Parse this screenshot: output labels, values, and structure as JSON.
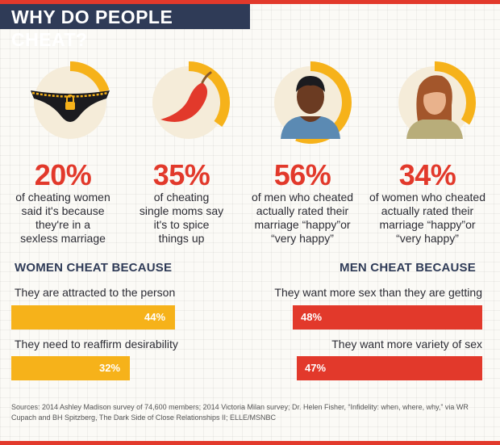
{
  "header": {
    "title": "WHY DO PEOPLE CHEAT?"
  },
  "colors": {
    "red": "#e2392b",
    "yellow": "#f6b21a",
    "navy": "#2f3b57",
    "ring_track": "#f5ecd9"
  },
  "stats": [
    {
      "value": "20%",
      "description": "of cheating women\nsaid it's because\nthey're in a\nsexless marriage",
      "icon": "lingerie-icon",
      "ring_fraction": 0.2
    },
    {
      "value": "35%",
      "description": "of cheating\nsingle moms say\nit's to spice\nthings up",
      "icon": "chili-pepper-icon",
      "ring_fraction": 0.35
    },
    {
      "value": "56%",
      "description": "of men who cheated\nactually rated their\nmarriage “happy”or\n“very happy”",
      "icon": "man-icon",
      "ring_fraction": 0.56
    },
    {
      "value": "34%",
      "description": "of women who cheated\nactually rated their\nmarriage “happy”or\n“very happy”",
      "icon": "woman-icon",
      "ring_fraction": 0.34
    }
  ],
  "chart_data": [
    {
      "type": "bar",
      "title": "WOMEN CHEAT BECAUSE",
      "categories": [
        "They are attracted to the person",
        "They need to reaffirm desirability"
      ],
      "values": [
        44,
        32
      ],
      "value_labels": [
        "44%",
        "32%"
      ],
      "ylim": [
        0,
        100
      ],
      "color": "#f6b21a"
    },
    {
      "type": "bar",
      "title": "MEN CHEAT BECAUSE",
      "categories": [
        "They want more sex than they are getting",
        "They want more variety of sex"
      ],
      "values": [
        48,
        47
      ],
      "value_labels": [
        "48%",
        "47%"
      ],
      "ylim": [
        0,
        100
      ],
      "color": "#e2392b"
    }
  ],
  "sources": "Sources: 2014 Ashley Madison survey of 74,600 members; 2014 Victoria Milan survey; Dr. Helen Fisher, “Infidelity: when, where, why,” via WR Cupach and BH Spitzberg, The Dark Side of Close Relationships II;  ELLE/MSNBC"
}
